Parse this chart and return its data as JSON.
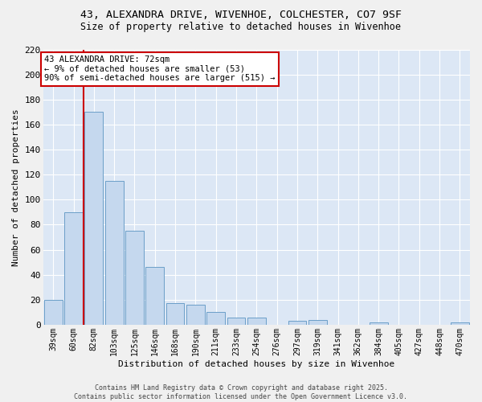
{
  "title_line1": "43, ALEXANDRA DRIVE, WIVENHOE, COLCHESTER, CO7 9SF",
  "title_line2": "Size of property relative to detached houses in Wivenhoe",
  "xlabel": "Distribution of detached houses by size in Wivenhoe",
  "ylabel": "Number of detached properties",
  "categories": [
    "39sqm",
    "60sqm",
    "82sqm",
    "103sqm",
    "125sqm",
    "146sqm",
    "168sqm",
    "190sqm",
    "211sqm",
    "233sqm",
    "254sqm",
    "276sqm",
    "297sqm",
    "319sqm",
    "341sqm",
    "362sqm",
    "384sqm",
    "405sqm",
    "427sqm",
    "448sqm",
    "470sqm"
  ],
  "values": [
    20,
    90,
    170,
    115,
    75,
    46,
    17,
    16,
    10,
    6,
    6,
    0,
    3,
    4,
    0,
    0,
    2,
    0,
    0,
    0,
    2
  ],
  "bar_color": "#c5d8ee",
  "bar_edge_color": "#6b9fc8",
  "vline_color": "#cc0000",
  "vline_position": 1.5,
  "annotation_line1": "43 ALEXANDRA DRIVE: 72sqm",
  "annotation_line2": "← 9% of detached houses are smaller (53)",
  "annotation_line3": "90% of semi-detached houses are larger (515) →",
  "annotation_box_facecolor": "#ffffff",
  "annotation_box_edgecolor": "#cc0000",
  "ylim_max": 220,
  "yticks": [
    0,
    20,
    40,
    60,
    80,
    100,
    120,
    140,
    160,
    180,
    200,
    220
  ],
  "plot_bg_color": "#dce7f5",
  "grid_color": "#ffffff",
  "footer_line1": "Contains HM Land Registry data © Crown copyright and database right 2025.",
  "footer_line2": "Contains public sector information licensed under the Open Government Licence v3.0.",
  "fig_bg_color": "#f0f0f0"
}
